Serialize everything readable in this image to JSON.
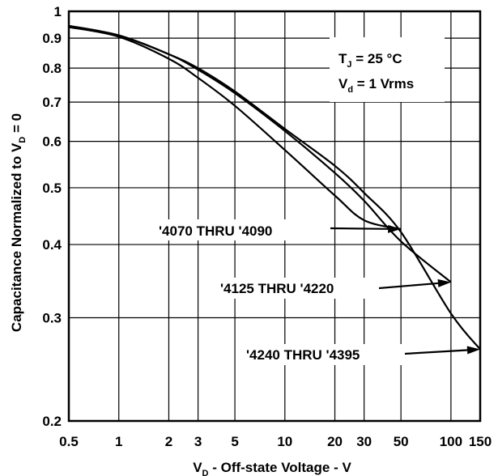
{
  "chart_data": {
    "type": "line",
    "xscale": "log",
    "yscale": "log",
    "xlim": [
      0.5,
      150
    ],
    "ylim": [
      0.2,
      1
    ],
    "xticks": [
      0.5,
      1,
      2,
      3,
      5,
      10,
      20,
      30,
      50,
      100,
      150
    ],
    "xtick_labels": [
      "0.5",
      "1",
      "2",
      "3",
      "5",
      "10",
      "20",
      "30",
      "50",
      "100",
      "150"
    ],
    "yticks": [
      0.2,
      0.3,
      0.4,
      0.5,
      0.6,
      0.7,
      0.8,
      0.9,
      1
    ],
    "ytick_labels": [
      "0.2",
      "0.3",
      "0.4",
      "0.5",
      "0.6",
      "0.7",
      "0.8",
      "0.9",
      "1"
    ],
    "grid": true,
    "xlabel": {
      "main": "V",
      "sub": "D",
      "rest": " - Off-state Voltage - V"
    },
    "ylabel": {
      "main": "Capacitance Normalized to V",
      "sub": "D",
      "rest": " = 0"
    },
    "conditions": [
      {
        "main": "T",
        "sub": "J",
        "rest": " = 25 °C"
      },
      {
        "main": "V",
        "sub": "d",
        "rest": " = 1 Vrms"
      }
    ],
    "series": [
      {
        "name": "'4070 THRU '4090",
        "points": [
          [
            0.5,
            0.94
          ],
          [
            1,
            0.905
          ],
          [
            2,
            0.83
          ],
          [
            3,
            0.77
          ],
          [
            5,
            0.69
          ],
          [
            10,
            0.58
          ],
          [
            20,
            0.485
          ],
          [
            30,
            0.44
          ],
          [
            50,
            0.425
          ]
        ]
      },
      {
        "name": "'4125 THRU '4220",
        "points": [
          [
            0.5,
            0.94
          ],
          [
            1,
            0.91
          ],
          [
            2,
            0.845
          ],
          [
            3,
            0.795
          ],
          [
            5,
            0.725
          ],
          [
            10,
            0.625
          ],
          [
            20,
            0.53
          ],
          [
            30,
            0.475
          ],
          [
            50,
            0.405
          ],
          [
            100,
            0.345
          ]
        ]
      },
      {
        "name": "'4240 THRU '4395",
        "points": [
          [
            0.5,
            0.945
          ],
          [
            1,
            0.91
          ],
          [
            2,
            0.845
          ],
          [
            3,
            0.8
          ],
          [
            5,
            0.73
          ],
          [
            10,
            0.63
          ],
          [
            20,
            0.545
          ],
          [
            30,
            0.49
          ],
          [
            50,
            0.42
          ],
          [
            100,
            0.305
          ],
          [
            150,
            0.265
          ]
        ]
      }
    ]
  }
}
